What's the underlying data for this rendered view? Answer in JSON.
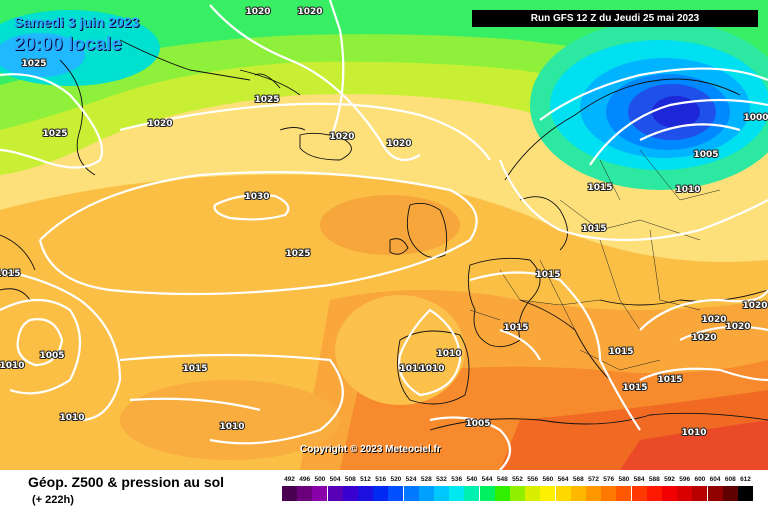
{
  "header": {
    "date": "Samedi 3 juin 2023",
    "time": "20:00 locale",
    "run": "Run GFS 12 Z du Jeudi 25 mai 2023"
  },
  "copyright": "Copyright © 2023 Meteociel.fr",
  "footer": {
    "field": "Géop. Z500 & pression au sol",
    "lead": "(+ 222h)"
  },
  "scale": {
    "ticks": [
      "492",
      "496",
      "500",
      "504",
      "508",
      "512",
      "516",
      "520",
      "524",
      "528",
      "532",
      "536",
      "540",
      "544",
      "548",
      "552",
      "556",
      "560",
      "564",
      "568",
      "572",
      "576",
      "580",
      "584",
      "588",
      "592",
      "596",
      "600",
      "604",
      "608",
      "612"
    ],
    "colors": [
      "#4a0050",
      "#6a007a",
      "#8a00a8",
      "#5800b8",
      "#3a00d0",
      "#1c10e0",
      "#0028f0",
      "#0050ff",
      "#0078ff",
      "#00a0ff",
      "#00c8ff",
      "#00e8f0",
      "#00f0b0",
      "#00f060",
      "#30f000",
      "#90f000",
      "#d8f000",
      "#fff000",
      "#ffd800",
      "#ffb800",
      "#ff9800",
      "#ff7800",
      "#ff5800",
      "#ff3800",
      "#ff1800",
      "#f00000",
      "#d80000",
      "#b80000",
      "#900000",
      "#600000",
      "#000000"
    ]
  },
  "pressure_labels": [
    {
      "text": "1020"
    },
    {
      "text": "1020"
    },
    {
      "text": "1025"
    },
    {
      "text": "1025"
    },
    {
      "text": "1025"
    },
    {
      "text": "1020"
    },
    {
      "text": "1020"
    },
    {
      "text": "1020"
    },
    {
      "text": "1030"
    },
    {
      "text": "1025"
    },
    {
      "text": "1015"
    },
    {
      "text": "1005"
    },
    {
      "text": "1010"
    },
    {
      "text": "1015"
    },
    {
      "text": "1010"
    },
    {
      "text": "1010"
    },
    {
      "text": "1000"
    },
    {
      "text": "1005"
    },
    {
      "text": "1015"
    },
    {
      "text": "1010"
    },
    {
      "text": "1015"
    },
    {
      "text": "1015"
    },
    {
      "text": "1015"
    },
    {
      "text": "1020"
    },
    {
      "text": "1020"
    },
    {
      "text": "1020"
    },
    {
      "text": "1020"
    },
    {
      "text": "1015"
    },
    {
      "text": "1015"
    },
    {
      "text": "1015"
    },
    {
      "text": "1010"
    },
    {
      "text": "1010"
    },
    {
      "text": "1010"
    },
    {
      "text": "1010"
    },
    {
      "text": "1005"
    }
  ]
}
